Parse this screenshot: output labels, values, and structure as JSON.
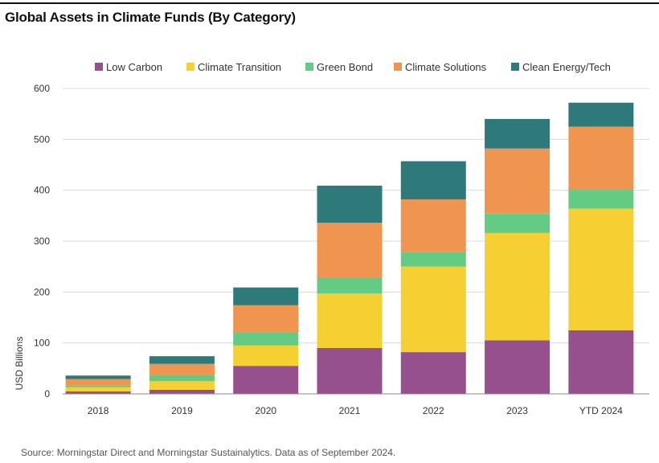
{
  "title": "Global Assets in Climate Funds (By Category)",
  "source": "Source: Morningstar Direct and Morningstar Sustainalytics. Data as of September 2024.",
  "chart_data": {
    "type": "bar",
    "stacked": true,
    "categories": [
      "2018",
      "2019",
      "2020",
      "2021",
      "2022",
      "2023",
      "YTD 2024"
    ],
    "ylabel": "USD Billions",
    "xlabel": "",
    "ylim": [
      0,
      600
    ],
    "yticks": [
      "0",
      "100",
      "200",
      "300",
      "400",
      "500",
      "600"
    ],
    "grid": true,
    "legend_position": "top",
    "series": [
      {
        "name": "Low Carbon",
        "color": "#97508E",
        "values": [
          5,
          8,
          55,
          90,
          82,
          105,
          125
        ]
      },
      {
        "name": "Climate Transition",
        "color": "#F6CF33",
        "values": [
          8,
          17,
          40,
          107,
          168,
          211,
          239
        ]
      },
      {
        "name": "Green Bond",
        "color": "#64CB85",
        "values": [
          4,
          12,
          25,
          32,
          28,
          38,
          37
        ]
      },
      {
        "name": "Climate Solutions",
        "color": "#F0954F",
        "values": [
          12,
          22,
          54,
          107,
          104,
          128,
          124
        ]
      },
      {
        "name": "Clean Energy/Tech",
        "color": "#2E7A7A",
        "values": [
          7,
          15,
          35,
          73,
          75,
          58,
          47
        ]
      }
    ]
  }
}
